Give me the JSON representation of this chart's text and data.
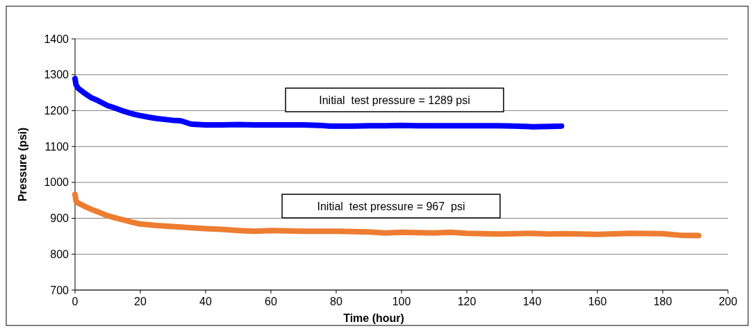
{
  "chart_data": {
    "type": "line",
    "xlabel": "Time (hour)",
    "ylabel": "Pressure (psi)",
    "xlim": [
      0,
      200
    ],
    "xticks": [
      0,
      20,
      40,
      60,
      80,
      100,
      120,
      140,
      160,
      180,
      200
    ],
    "ylim": [
      700,
      1400
    ],
    "yticks": [
      700,
      800,
      900,
      1000,
      1100,
      1200,
      1300,
      1400
    ],
    "grid": "y",
    "line_style": "solid",
    "annotations": [
      "Initial  test pressure = 1289 psi",
      "Initial  test pressure = 967  psi"
    ],
    "series": [
      {
        "color": "#0000ff",
        "x": [
          0,
          0.3,
          1,
          2,
          3,
          5,
          7,
          10,
          12,
          15,
          18,
          20,
          23,
          25,
          28,
          30,
          32,
          33,
          35,
          36,
          40,
          45,
          50,
          55,
          60,
          65,
          70,
          75,
          78,
          85,
          90,
          95,
          100,
          105,
          110,
          115,
          120,
          125,
          130,
          135,
          140,
          145,
          149
        ],
        "values": [
          1289,
          1272,
          1262,
          1255,
          1248,
          1236,
          1228,
          1214,
          1208,
          1198,
          1190,
          1186,
          1181,
          1178,
          1175,
          1173,
          1172,
          1170,
          1164,
          1162,
          1160,
          1160,
          1161,
          1160,
          1160,
          1160,
          1160,
          1159,
          1157,
          1157,
          1158,
          1158,
          1159,
          1158,
          1158,
          1158,
          1158,
          1158,
          1158,
          1157,
          1155,
          1156,
          1157
        ]
      },
      {
        "color": "#ed7d31",
        "x": [
          0,
          0.3,
          1,
          2,
          3,
          5,
          7,
          10,
          12,
          15,
          18,
          20,
          25,
          30,
          35,
          40,
          45,
          50,
          55,
          60,
          70,
          80,
          90,
          95,
          100,
          110,
          115,
          120,
          130,
          140,
          145,
          150,
          160,
          170,
          180,
          185,
          191
        ],
        "values": [
          967,
          948,
          942,
          938,
          933,
          925,
          918,
          907,
          902,
          895,
          888,
          884,
          880,
          877,
          874,
          871,
          869,
          866,
          864,
          866,
          864,
          864,
          862,
          859,
          861,
          859,
          861,
          858,
          856,
          858,
          856,
          857,
          855,
          858,
          857,
          853,
          852
        ]
      }
    ]
  }
}
